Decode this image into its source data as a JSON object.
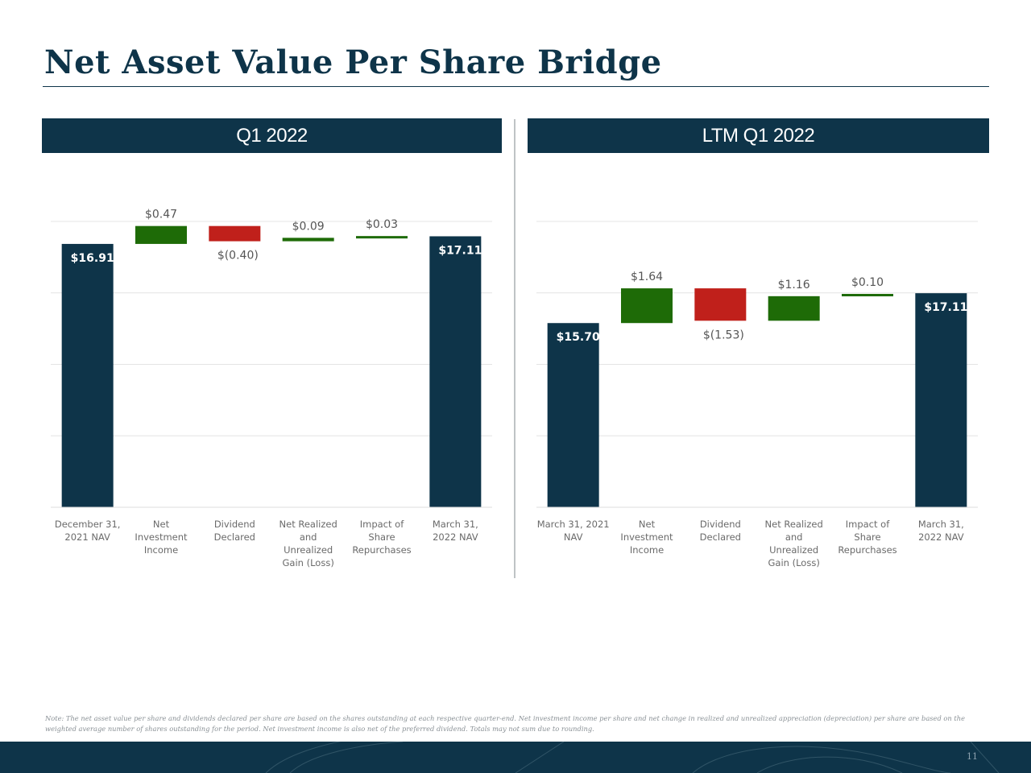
{
  "page": {
    "title": "Net Asset Value Per Share Bridge",
    "footnote": "Note: The net asset value per share and dividends declared per share are based on the shares outstanding at each respective quarter-end. Net investment income per share and net change in realized and unrealized appreciation (depreciation) per share are based on the weighted average number of shares outstanding for the period. Net investment income is also net of the preferred dividend. Totals may not sum due to rounding.",
    "page_number": "11"
  },
  "colors": {
    "navy": "#0e3449",
    "positive": "#1e6b07",
    "negative": "#c0201b",
    "grid": "#e4e4e4"
  },
  "chart_data": [
    {
      "type": "bar",
      "subtype": "waterfall",
      "title": "Q1 2022",
      "categories": [
        "December 31, 2021 NAV",
        "Net Investment Income",
        "Dividend Declared",
        "Net Realized and Unrealized Gain (Loss)",
        "Impact of Share Repurchases",
        "March 31, 2022 NAV"
      ],
      "category_lines": [
        [
          "December 31,",
          "2021 NAV"
        ],
        [
          "Net",
          "Investment",
          "Income"
        ],
        [
          "Dividend",
          "Declared"
        ],
        [
          "Net Realized",
          "and",
          "Unrealized",
          "Gain (Loss)"
        ],
        [
          "Impact of",
          "Share",
          "Repurchases"
        ],
        [
          "March 31,",
          "2022 NAV"
        ]
      ],
      "values": [
        16.91,
        0.47,
        -0.4,
        0.09,
        0.03,
        17.11
      ],
      "kinds": [
        "total",
        "change",
        "change",
        "change",
        "change",
        "total"
      ],
      "data_labels": [
        "$16.91",
        "$0.47",
        "$(0.40)",
        "$0.09",
        "$0.03",
        "$17.11"
      ],
      "y_display_range": [
        10.0,
        17.5
      ],
      "grid": true,
      "legend": "none"
    },
    {
      "type": "bar",
      "subtype": "waterfall",
      "title": "LTM Q1 2022",
      "categories": [
        "March 31, 2021 NAV",
        "Net Investment Income",
        "Dividend Declared",
        "Net Realized and Unrealized Gain (Loss)",
        "Impact of Share Repurchases",
        "March 31, 2022 NAV"
      ],
      "category_lines": [
        [
          "March 31, 2021",
          "NAV"
        ],
        [
          "Net",
          "Investment",
          "Income"
        ],
        [
          "Dividend",
          "Declared"
        ],
        [
          "Net Realized",
          "and",
          "Unrealized",
          "Gain (Loss)"
        ],
        [
          "Impact of",
          "Share",
          "Repurchases"
        ],
        [
          "March 31,",
          "2022 NAV"
        ]
      ],
      "values": [
        15.7,
        1.64,
        -1.53,
        1.16,
        0.1,
        17.11
      ],
      "kinds": [
        "total",
        "change",
        "change",
        "change",
        "change",
        "total"
      ],
      "data_labels": [
        "$15.70",
        "$1.64",
        "$(1.53)",
        "$1.16",
        "$0.10",
        "$17.11"
      ],
      "y_display_range": [
        7.0,
        20.5
      ],
      "grid": true,
      "legend": "none"
    }
  ]
}
